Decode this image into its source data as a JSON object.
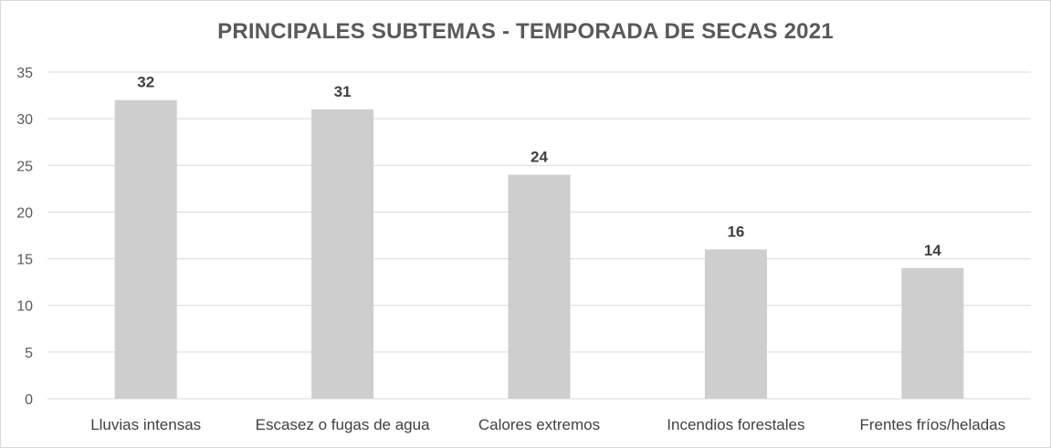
{
  "chart_data": {
    "type": "bar",
    "title": "PRINCIPALES SUBTEMAS - TEMPORADA DE SECAS 2021",
    "xlabel": "",
    "ylabel": "",
    "categories": [
      "Lluvias intensas",
      "Escasez o fugas de agua",
      "Calores extremos",
      "Incendios forestales",
      "Frentes fríos/heladas"
    ],
    "values": [
      32,
      31,
      24,
      16,
      14
    ],
    "ylim": [
      0,
      35
    ],
    "yticks": [
      "0",
      "5",
      "10",
      "15",
      "20",
      "25",
      "30",
      "35"
    ],
    "grid": true,
    "data_labels": true,
    "bar_color": "#cfcecf",
    "grid_color": "#d9d9d9"
  }
}
